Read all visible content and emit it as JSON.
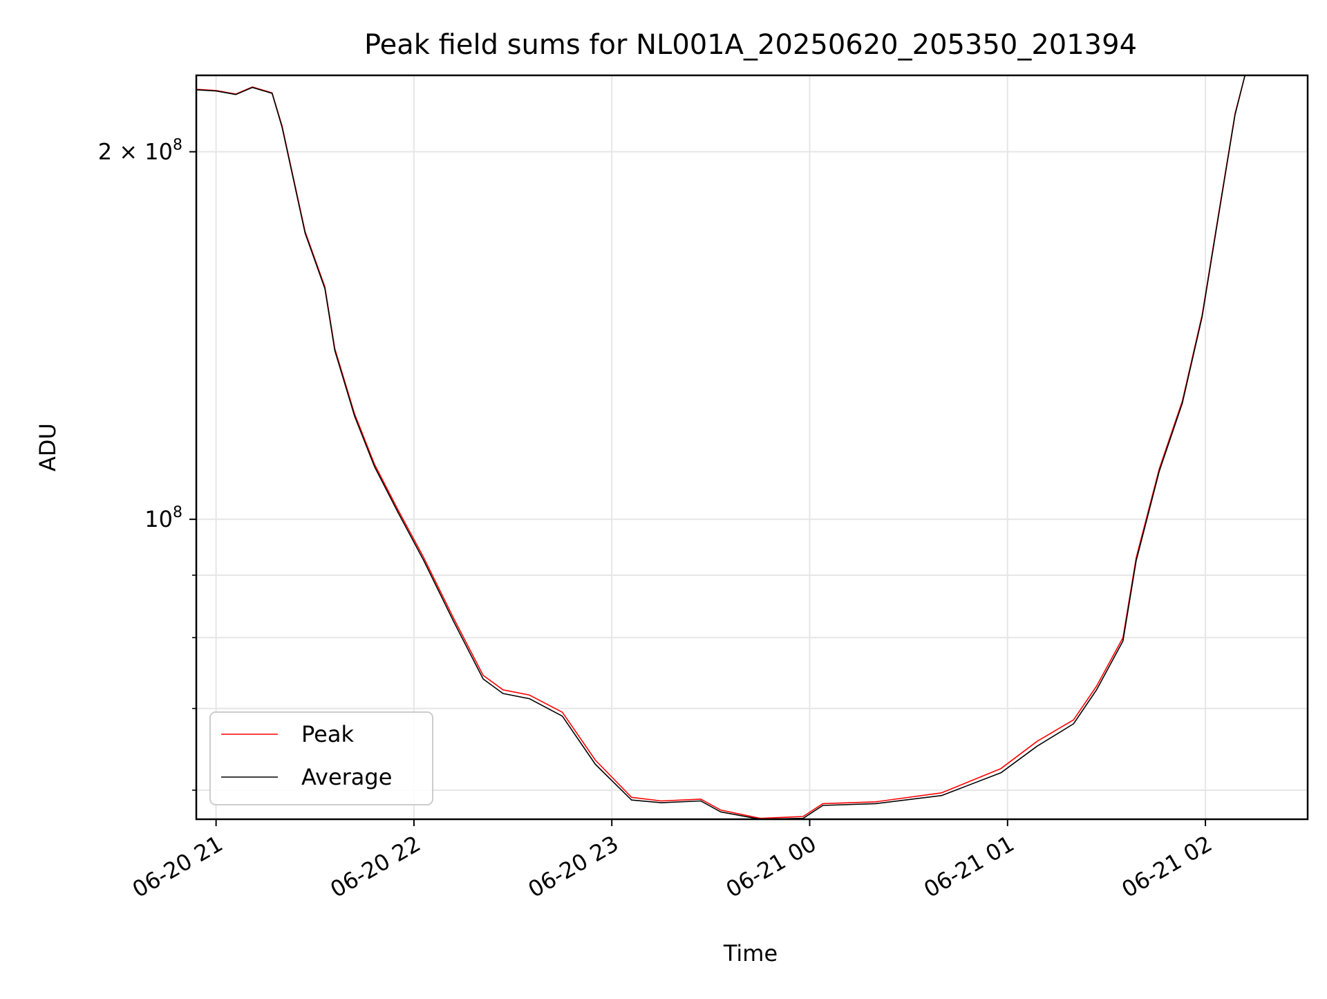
{
  "chart_data": {
    "type": "line",
    "title": "Peak field sums for NL001A_20250620_205350_201394",
    "xlabel": "Time",
    "ylabel": "ADU",
    "y_scale": "log",
    "grid": true,
    "legend_position": "lower-left",
    "xlim": [
      "2025-06-20T20:54:00",
      "2025-06-21T02:31:00"
    ],
    "ylim": [
      56800000,
      231000000
    ],
    "x_ticks": [
      {
        "value": "2025-06-20T21:00:00",
        "label": "06-20 21"
      },
      {
        "value": "2025-06-20T22:00:00",
        "label": "06-20 22"
      },
      {
        "value": "2025-06-20T23:00:00",
        "label": "06-20 23"
      },
      {
        "value": "2025-06-21T00:00:00",
        "label": "06-21 00"
      },
      {
        "value": "2025-06-21T01:00:00",
        "label": "06-21 01"
      },
      {
        "value": "2025-06-21T02:00:00",
        "label": "06-21 02"
      }
    ],
    "y_major_ticks": [
      {
        "value": 100000000,
        "base": "10",
        "exp": "8",
        "mult": ""
      },
      {
        "value": 200000000,
        "base": "10",
        "exp": "8",
        "mult": "2 × "
      }
    ],
    "y_minor_ticks": [
      60000000,
      70000000,
      80000000,
      90000000
    ],
    "series": [
      {
        "name": "Peak",
        "color": "#ff0000",
        "x": [
          "2025-06-20T20:54:00",
          "2025-06-20T21:00:00",
          "2025-06-20T21:06:00",
          "2025-06-20T21:11:00",
          "2025-06-20T21:17:00",
          "2025-06-20T21:20:00",
          "2025-06-20T21:27:00",
          "2025-06-20T21:33:00",
          "2025-06-20T21:36:00",
          "2025-06-20T21:42:00",
          "2025-06-20T21:48:00",
          "2025-06-20T21:55:00",
          "2025-06-20T22:03:00",
          "2025-06-20T22:12:00",
          "2025-06-20T22:21:00",
          "2025-06-20T22:27:00",
          "2025-06-20T22:35:00",
          "2025-06-20T22:45:00",
          "2025-06-20T22:55:00",
          "2025-06-20T23:06:00",
          "2025-06-20T23:15:00",
          "2025-06-20T23:27:00",
          "2025-06-20T23:33:00",
          "2025-06-20T23:45:00",
          "2025-06-20T23:58:00",
          "2025-06-21T00:04:00",
          "2025-06-21T00:20:00",
          "2025-06-21T00:40:00",
          "2025-06-21T00:58:00",
          "2025-06-21T01:09:00",
          "2025-06-21T01:20:00",
          "2025-06-21T01:27:00",
          "2025-06-21T01:35:00",
          "2025-06-21T01:39:00",
          "2025-06-21T01:46:00",
          "2025-06-21T01:53:00",
          "2025-06-21T01:59:00",
          "2025-06-21T02:04:00",
          "2025-06-21T02:09:00",
          "2025-06-21T02:12:00"
        ],
        "y": [
          225000000,
          224500000,
          223000000,
          226000000,
          223500000,
          210000000,
          172000000,
          155000000,
          138000000,
          122000000,
          111000000,
          102000000,
          93000000,
          83000000,
          74500000,
          72500000,
          71800000,
          69500000,
          63500000,
          59200000,
          58800000,
          59000000,
          57800000,
          56900000,
          57100000,
          58500000,
          58700000,
          59700000,
          62500000,
          65800000,
          68500000,
          73000000,
          80000000,
          93000000,
          110000000,
          125000000,
          147000000,
          178000000,
          215000000,
          231000000
        ]
      },
      {
        "name": "Average",
        "color": "#000000",
        "x": [
          "2025-06-20T20:54:00",
          "2025-06-20T21:00:00",
          "2025-06-20T21:06:00",
          "2025-06-20T21:11:00",
          "2025-06-20T21:17:00",
          "2025-06-20T21:20:00",
          "2025-06-20T21:27:00",
          "2025-06-20T21:33:00",
          "2025-06-20T21:36:00",
          "2025-06-20T21:42:00",
          "2025-06-20T21:48:00",
          "2025-06-20T21:55:00",
          "2025-06-20T22:03:00",
          "2025-06-20T22:12:00",
          "2025-06-20T22:21:00",
          "2025-06-20T22:27:00",
          "2025-06-20T22:35:00",
          "2025-06-20T22:45:00",
          "2025-06-20T22:55:00",
          "2025-06-20T23:06:00",
          "2025-06-20T23:15:00",
          "2025-06-20T23:27:00",
          "2025-06-20T23:33:00",
          "2025-06-20T23:45:00",
          "2025-06-20T23:58:00",
          "2025-06-21T00:04:00",
          "2025-06-21T00:20:00",
          "2025-06-21T00:40:00",
          "2025-06-21T00:58:00",
          "2025-06-21T01:09:00",
          "2025-06-21T01:20:00",
          "2025-06-21T01:27:00",
          "2025-06-21T01:35:00",
          "2025-06-21T01:39:00",
          "2025-06-21T01:46:00",
          "2025-06-21T01:53:00",
          "2025-06-21T01:59:00",
          "2025-06-21T02:04:00",
          "2025-06-21T02:09:00",
          "2025-06-21T02:12:00"
        ],
        "y": [
          224800000,
          224300000,
          222800000,
          225800000,
          223300000,
          209500000,
          171500000,
          154500000,
          137500000,
          121500000,
          110500000,
          101500000,
          92500000,
          82500000,
          74000000,
          72000000,
          71300000,
          69000000,
          63000000,
          58900000,
          58600000,
          58800000,
          57600000,
          56800000,
          56900000,
          58300000,
          58500000,
          59400000,
          62000000,
          65200000,
          68000000,
          72500000,
          79500000,
          92500000,
          109500000,
          124500000,
          146500000,
          177500000,
          214500000,
          231000000
        ]
      }
    ]
  }
}
